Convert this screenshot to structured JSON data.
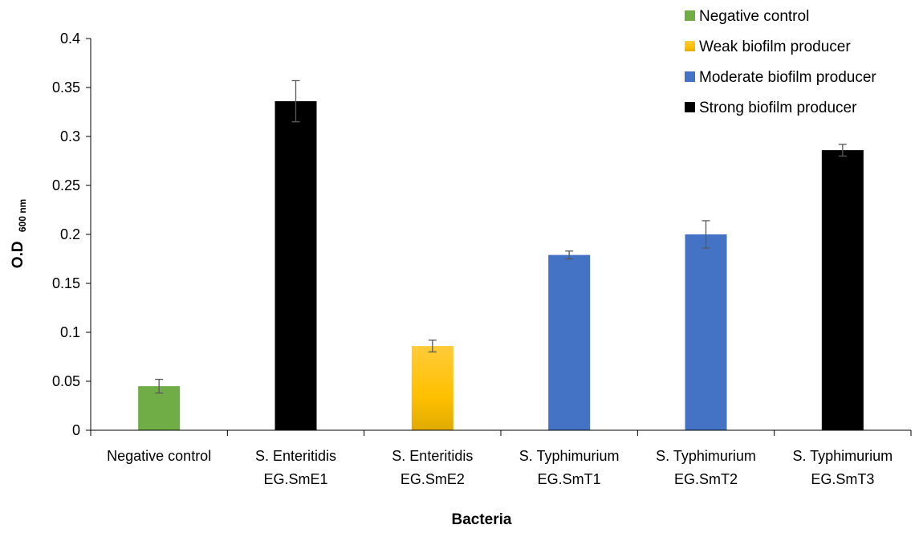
{
  "chart_data": {
    "type": "bar",
    "categories": [
      [
        "Negative control"
      ],
      [
        "S. Enteritidis",
        "EG.SmE1"
      ],
      [
        "S. Enteritidis",
        "EG.SmE2"
      ],
      [
        "S. Typhimurium",
        "EG.SmT1"
      ],
      [
        "S. Typhimurium",
        "EG.SmT2"
      ],
      [
        "S. Typhimurium",
        "EG.SmT3"
      ]
    ],
    "values": [
      0.045,
      0.336,
      0.086,
      0.179,
      0.2,
      0.286
    ],
    "error": [
      0.007,
      0.021,
      0.006,
      0.004,
      0.014,
      0.006
    ],
    "bar_group": [
      "Negative control",
      "Strong biofilm producer",
      "Weak biofilm producer",
      "Moderate biofilm producer",
      "Moderate biofilm producer",
      "Strong biofilm producer"
    ],
    "legend": [
      {
        "name": "Negative control",
        "color": "#70ad47"
      },
      {
        "name": "Weak biofilm producer",
        "color": "#ffc000"
      },
      {
        "name": "Moderate biofilm producer",
        "color": "#4472c4"
      },
      {
        "name": "Strong biofilm producer",
        "color": "#000000"
      }
    ],
    "legend_position": "top-right",
    "xlabel": "Bacteria",
    "ylabel_main": "O.D",
    "ylabel_sub": "600 nm",
    "ylim": [
      0,
      0.4
    ],
    "yticks": [
      0,
      0.05,
      0.1,
      0.15,
      0.2,
      0.25,
      0.3,
      0.35,
      0.4
    ],
    "ytick_labels": [
      "0",
      "0.05",
      "0.1",
      "0.15",
      "0.2",
      "0.25",
      "0.3",
      "0.35",
      "0.4"
    ],
    "grid": false
  }
}
